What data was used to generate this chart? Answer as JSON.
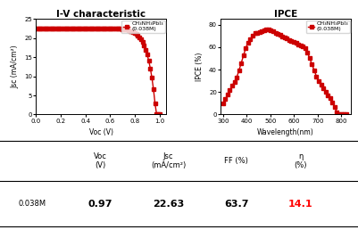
{
  "iv_title": "I-V characteristic",
  "ipce_title": "IPCE",
  "legend_label_line1": "CH₃NH₃PbI₃",
  "legend_label_line2": "(0.038M)",
  "iv_xlabel": "Voc (V)",
  "iv_ylabel": "Jsc (mA/cm²)",
  "ipce_xlabel": "Wavelength(nm)",
  "ipce_ylabel": "IPCE (%)",
  "iv_xlim": [
    0.0,
    1.05
  ],
  "iv_ylim": [
    0,
    25
  ],
  "ipce_xlim": [
    290,
    840
  ],
  "ipce_ylim": [
    0,
    85
  ],
  "iv_xticks": [
    0.0,
    0.2,
    0.4,
    0.6,
    0.8,
    1.0
  ],
  "iv_yticks": [
    0,
    5,
    10,
    15,
    20,
    25
  ],
  "ipce_xticks": [
    300,
    400,
    500,
    600,
    700,
    800
  ],
  "ipce_yticks": [
    0,
    20,
    40,
    60,
    80
  ],
  "line_color": "#cc0000",
  "marker": "s",
  "markersize": 2.5,
  "table_headers": [
    "Voc\n(V)",
    "Jsc\n(mA/cm²)",
    "FF (%)",
    "η\n(%)"
  ],
  "table_row_label": "0.038M",
  "table_values": [
    "0.97",
    "22.63",
    "63.7",
    "14.1"
  ],
  "table_value_color": [
    "black",
    "black",
    "black",
    "red"
  ],
  "background_color": "white"
}
